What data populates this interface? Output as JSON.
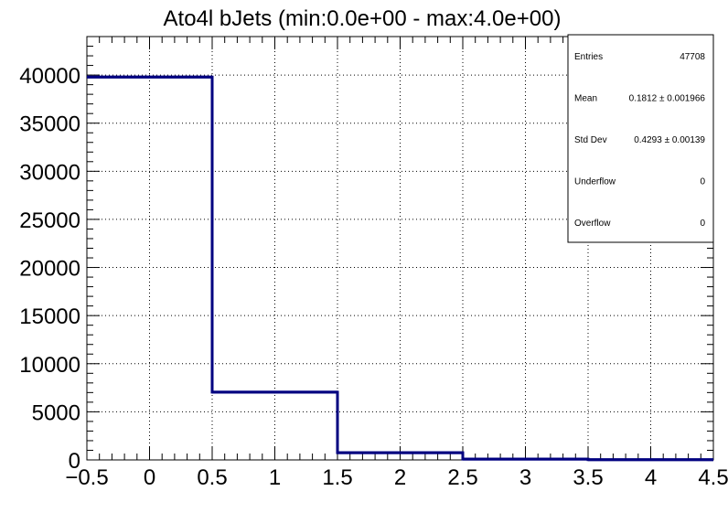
{
  "chart_data": {
    "type": "bar",
    "title": "Ato4l bJets (min:0.0e+00 - max:4.0e+00)",
    "xlabel": "",
    "ylabel": "",
    "xlim": [
      -0.5,
      4.5
    ],
    "ylim": [
      0,
      44000
    ],
    "grid": true,
    "bin_edges": [
      -0.5,
      0.5,
      1.5,
      2.5,
      3.5,
      4.5
    ],
    "values": [
      39800,
      7050,
      750,
      80,
      20
    ],
    "x_ticks": [
      -0.5,
      0,
      0.5,
      1,
      1.5,
      2,
      2.5,
      3,
      3.5,
      4,
      4.5
    ],
    "x_tick_labels": [
      "−0.5",
      "0",
      "0.5",
      "1",
      "1.5",
      "2",
      "2.5",
      "3",
      "3.5",
      "4",
      "4.5"
    ],
    "y_ticks": [
      0,
      5000,
      10000,
      15000,
      20000,
      25000,
      30000,
      35000,
      40000
    ],
    "y_tick_labels": [
      "0",
      "5000",
      "10000",
      "15000",
      "20000",
      "25000",
      "30000",
      "35000",
      "40000"
    ],
    "line_color": "#000080",
    "stats_box": [
      {
        "label": "Entries",
        "value": "47708"
      },
      {
        "label": "Mean",
        "value": "0.1812 ± 0.001966"
      },
      {
        "label": "Std Dev",
        "value": "0.4293 ± 0.00139"
      },
      {
        "label": "Underflow",
        "value": "0"
      },
      {
        "label": "Overflow",
        "value": "0"
      }
    ]
  }
}
